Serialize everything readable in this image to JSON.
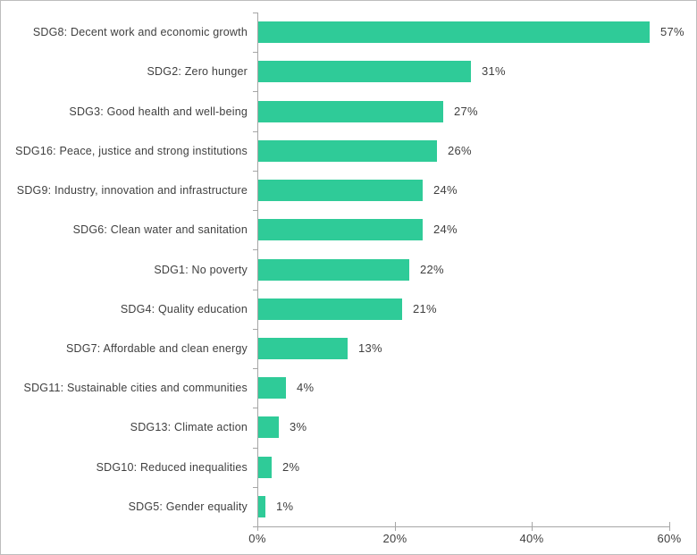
{
  "chart_data": {
    "type": "bar",
    "orientation": "horizontal",
    "title": "",
    "xlabel": "",
    "ylabel": "",
    "categories": [
      "SDG8: Decent work and economic growth",
      "SDG2: Zero hunger",
      "SDG3: Good health and well-being",
      "SDG16: Peace, justice and strong institutions",
      "SDG9: Industry, innovation and infrastructure",
      "SDG6: Clean water and sanitation",
      "SDG1: No poverty",
      "SDG4: Quality education",
      "SDG7: Affordable and clean energy",
      "SDG11: Sustainable cities and communities",
      "SDG13: Climate action",
      "SDG10: Reduced inequalities",
      "SDG5: Gender equality"
    ],
    "values": [
      57,
      31,
      27,
      26,
      24,
      24,
      22,
      21,
      13,
      4,
      3,
      2,
      1
    ],
    "value_labels": [
      "57%",
      "31%",
      "27%",
      "26%",
      "24%",
      "24%",
      "22%",
      "21%",
      "13%",
      "4%",
      "3%",
      "2%",
      "1%"
    ],
    "x_ticks": [
      0,
      20,
      40,
      60
    ],
    "x_tick_labels": [
      "0%",
      "20%",
      "40%",
      "60%"
    ],
    "xlim": [
      0,
      60
    ],
    "grid": false,
    "legend": false,
    "colors": {
      "bar": "#2fcb98",
      "axis": "#a6a6a6",
      "text": "#3f3f3f",
      "frame": "#bdbdbd",
      "background": "#ffffff"
    }
  }
}
